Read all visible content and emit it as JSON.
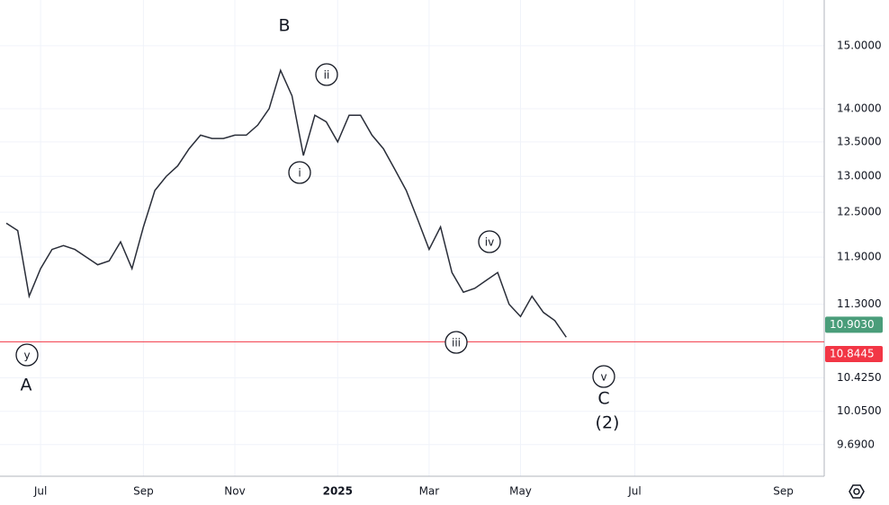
{
  "chart_data": {
    "type": "line",
    "log_scale": true,
    "grid": true,
    "color": "#2a2e39",
    "ylim": [
      9.36,
      15.77
    ],
    "yticks": [
      {
        "value": 15,
        "label": "15.0000"
      },
      {
        "value": 14,
        "label": "14.0000"
      },
      {
        "value": 13.5,
        "label": "13.5000"
      },
      {
        "value": 13,
        "label": "13.0000"
      },
      {
        "value": 12.5,
        "label": "12.5000"
      },
      {
        "value": 11.9,
        "label": "11.9000"
      },
      {
        "value": 11.3,
        "label": "11.3000"
      },
      {
        "value": 10.425,
        "label": "10.4250"
      },
      {
        "value": 10.05,
        "label": "10.0500"
      },
      {
        "value": 9.69,
        "label": "9.6900"
      }
    ],
    "categories": [
      null,
      null,
      null,
      "Jul",
      null,
      null,
      null,
      null,
      null,
      null,
      null,
      null,
      "Sep",
      null,
      null,
      null,
      null,
      null,
      null,
      null,
      "Nov",
      null,
      null,
      null,
      null,
      null,
      null,
      null,
      null,
      "2025",
      null,
      null,
      null,
      null,
      null,
      null,
      null,
      "Mar",
      null,
      null,
      null,
      null,
      null,
      null,
      null,
      "May",
      null,
      null,
      null,
      null,
      null,
      null,
      null,
      null,
      null,
      "Jul",
      null,
      null,
      null,
      null,
      null,
      null,
      null,
      null,
      null,
      null,
      null,
      null,
      "Sep",
      null,
      null
    ],
    "values": [
      12.35,
      12.25,
      11.4,
      11.75,
      12.0,
      12.05,
      12.0,
      11.9,
      11.8,
      11.85,
      12.1,
      11.75,
      12.3,
      12.8,
      13.0,
      13.15,
      13.4,
      13.6,
      13.55,
      13.55,
      13.6,
      13.6,
      13.75,
      14.0,
      14.6,
      14.2,
      13.3,
      13.9,
      13.8,
      13.5,
      13.9,
      13.9,
      13.6,
      13.4,
      13.1,
      12.8,
      12.4,
      12.0,
      12.3,
      11.7,
      11.45,
      11.5,
      11.6,
      11.7,
      11.3,
      11.15,
      11.4,
      11.2,
      11.1,
      10.9,
      null,
      null,
      null,
      null,
      null,
      null,
      null,
      null,
      null,
      null,
      null,
      null,
      null,
      null,
      null,
      null,
      null,
      null,
      null,
      null,
      null
    ],
    "last_price": {
      "value": 10.903,
      "label": "10.9030",
      "color": "#4a9d7a"
    },
    "hline": {
      "value": 10.8445,
      "label": "10.8445",
      "color": "#f23645"
    },
    "annotations": [
      "B",
      "ii",
      "i",
      "iv",
      "iii",
      "y",
      "A",
      "v",
      "C",
      "(2)"
    ]
  }
}
